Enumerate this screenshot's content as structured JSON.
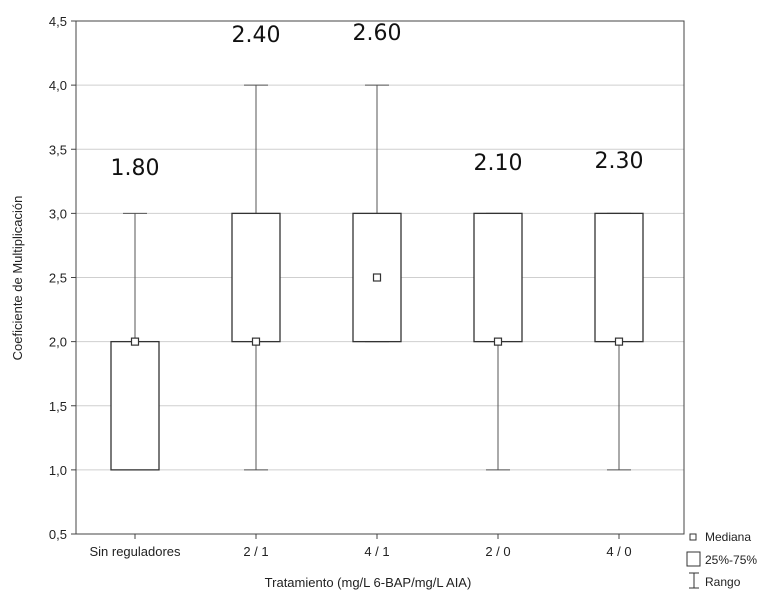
{
  "chart_data": {
    "type": "box",
    "title": "",
    "xlabel": "Tratamiento (mg/L 6-BAP/mg/L AIA)",
    "ylabel": "Coeficiente de Multiplicación",
    "ylim": [
      0.5,
      4.5
    ],
    "yticks": [
      0.5,
      1.0,
      1.5,
      2.0,
      2.5,
      3.0,
      3.5,
      4.0,
      4.5
    ],
    "ytick_labels": [
      "0,5",
      "1,0",
      "1,5",
      "2,0",
      "2,5",
      "3,0",
      "3,5",
      "4,0",
      "4,5"
    ],
    "grid": true,
    "categories": [
      "Sin reguladores",
      "2 / 1",
      "4 / 1",
      "2 / 0",
      "4 / 0"
    ],
    "boxes": [
      {
        "category": "Sin reguladores",
        "min": 1.0,
        "q1": 1.0,
        "median": 2.0,
        "q3": 2.0,
        "max": 3.0,
        "annotation": "1.80"
      },
      {
        "category": "2 / 1",
        "min": 1.0,
        "q1": 2.0,
        "median": 2.0,
        "q3": 3.0,
        "max": 4.0,
        "annotation": "2.40"
      },
      {
        "category": "4 / 1",
        "min": 2.0,
        "q1": 2.0,
        "median": 2.5,
        "q3": 3.0,
        "max": 4.0,
        "annotation": "2.60"
      },
      {
        "category": "2 / 0",
        "min": 1.0,
        "q1": 2.0,
        "median": 2.0,
        "q3": 3.0,
        "max": 3.0,
        "annotation": "2.10"
      },
      {
        "category": "4 / 0",
        "min": 1.0,
        "q1": 2.0,
        "median": 2.0,
        "q3": 3.0,
        "max": 3.0,
        "annotation": "2.30"
      }
    ],
    "legend": {
      "position": "bottom-right",
      "entries": [
        "Mediana",
        "25%-75%",
        "Rango"
      ]
    }
  }
}
